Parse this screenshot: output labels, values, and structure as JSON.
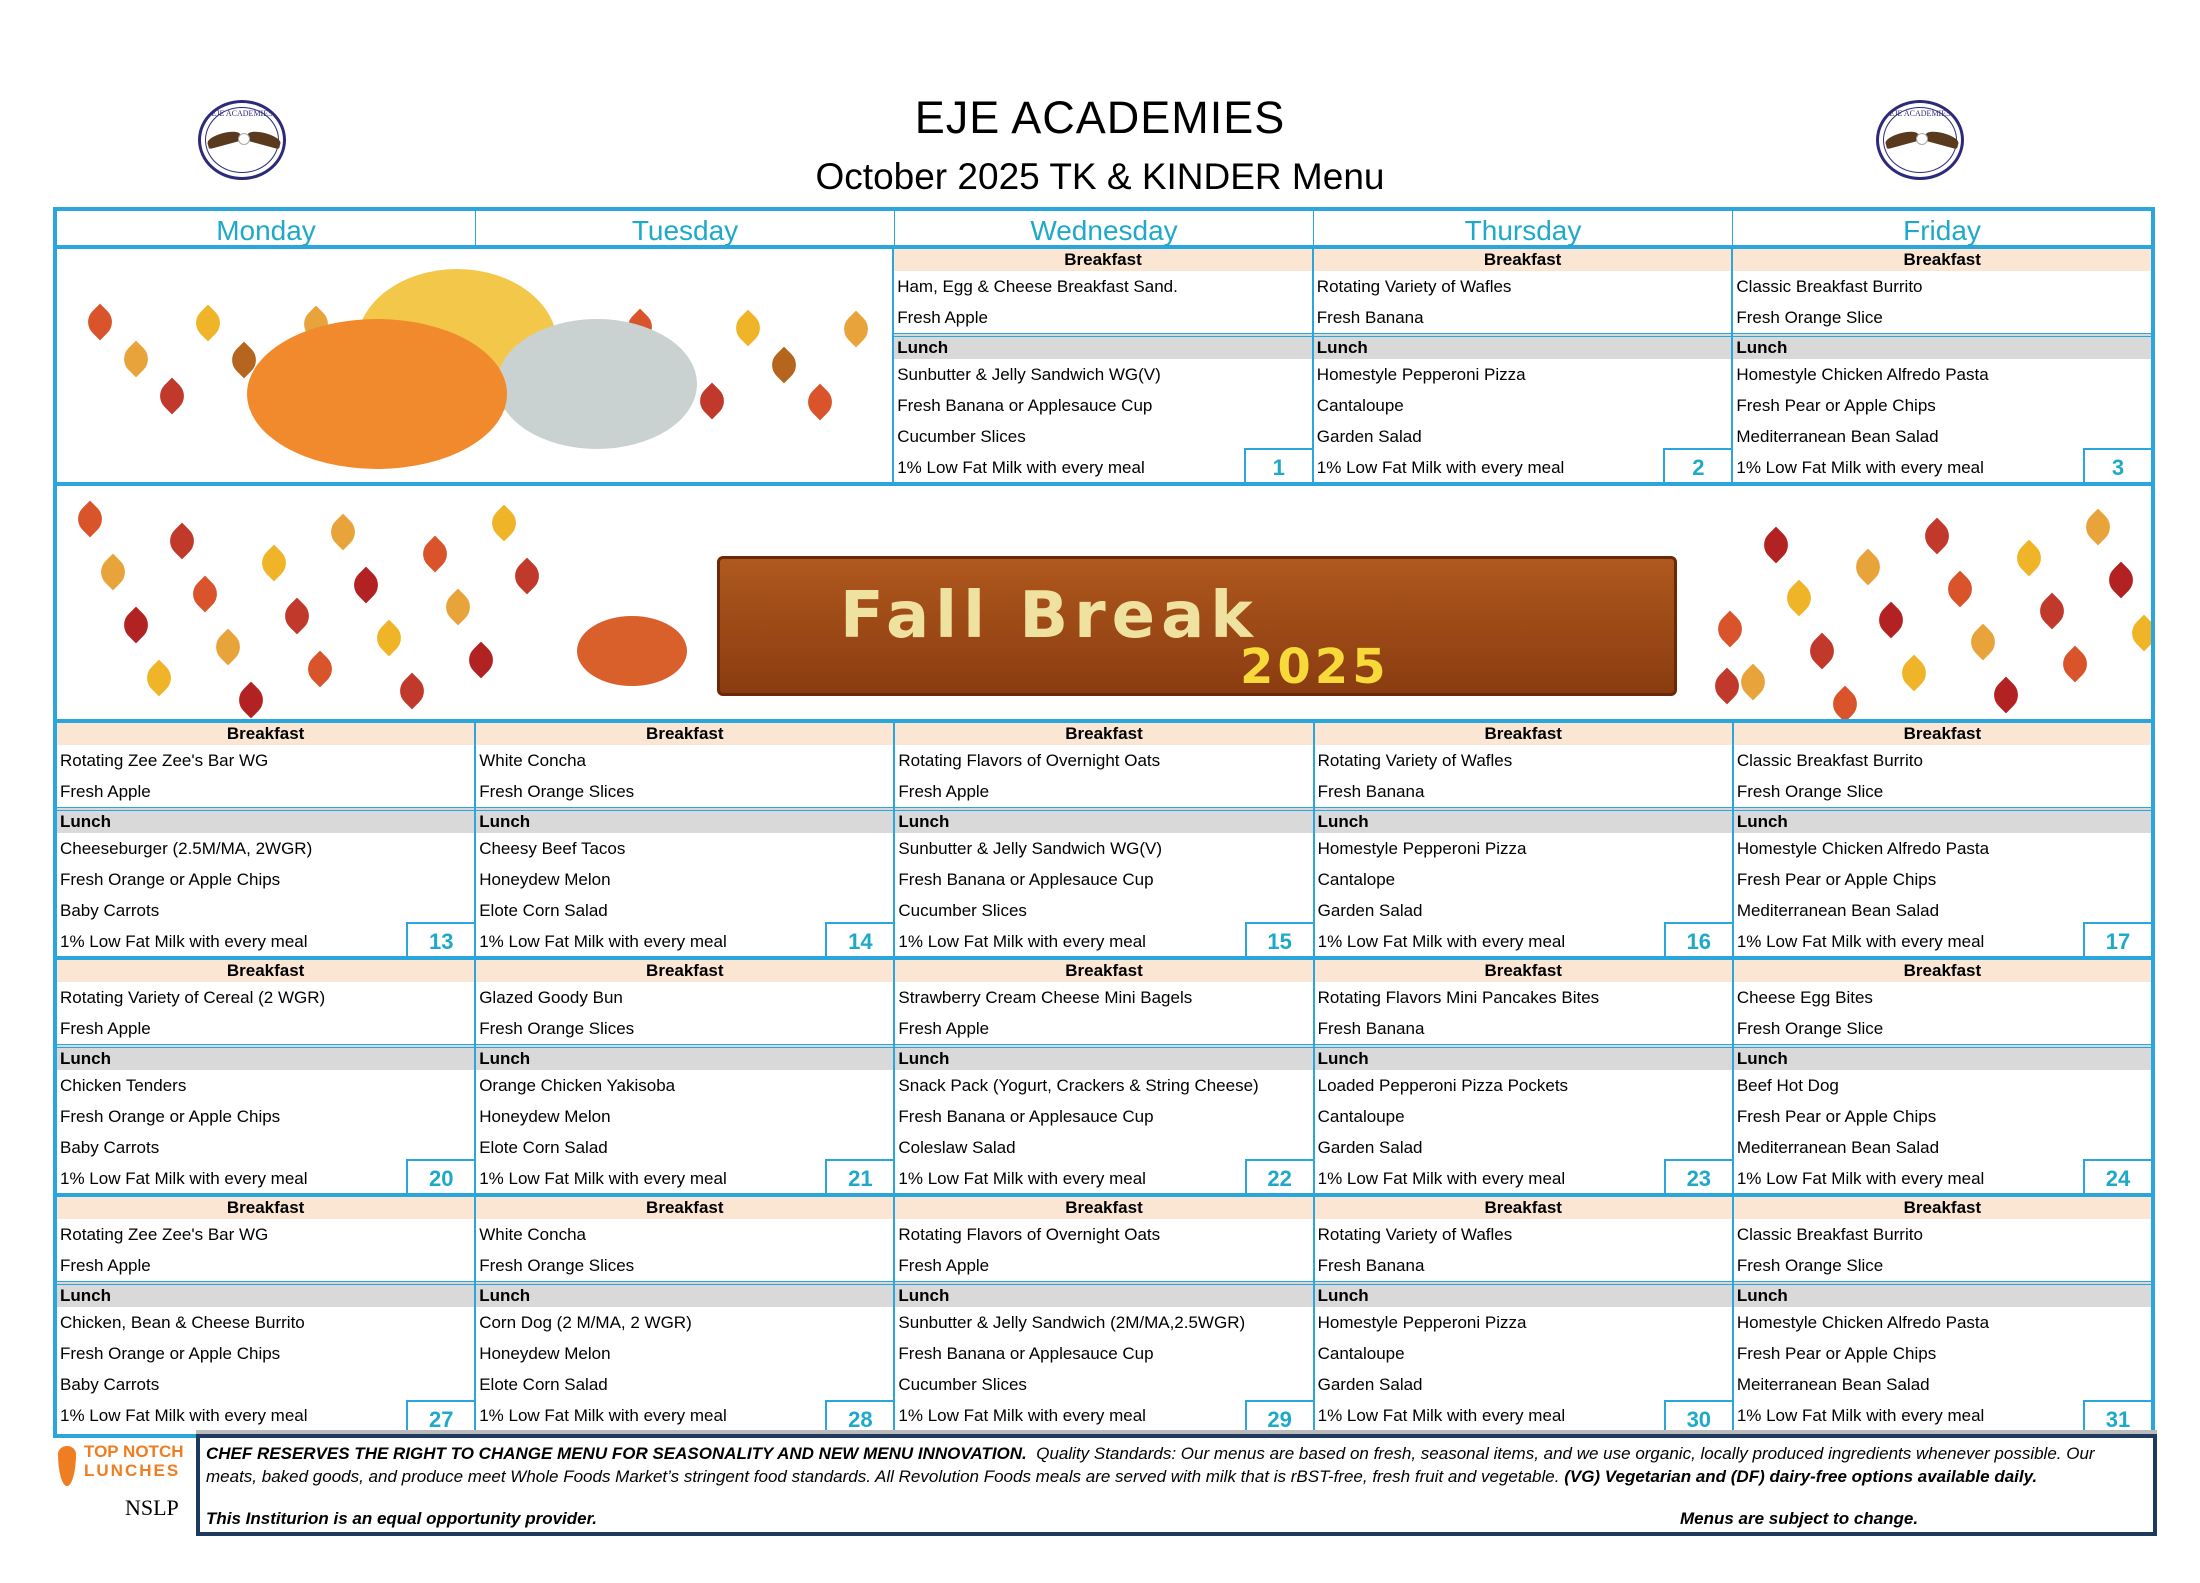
{
  "header": {
    "title": "EJE  ACADEMIES",
    "subtitle": "October 2025 TK & KINDER Menu",
    "logo_text": "EJE ACADEMIES"
  },
  "days": [
    "Monday",
    "Tuesday",
    "Wednesday",
    "Thursday",
    "Friday"
  ],
  "labels": {
    "breakfast": "Breakfast",
    "lunch": "Lunch"
  },
  "fall_break": {
    "line1": "Fall Break",
    "line2": "2025"
  },
  "colors": {
    "accent": "#2ba6dc",
    "day_header": "#1fa9c9",
    "breakfast_bg": "#fbe6d4",
    "lunch_bg": "#d9d9d9"
  },
  "weeks": [
    {
      "days": [
        null,
        null,
        {
          "date": "1",
          "breakfast": [
            "Ham, Egg & Cheese Breakfast Sand.",
            "Fresh Apple"
          ],
          "lunch": [
            "Sunbutter & Jelly Sandwich WG(V)",
            "Fresh Banana or Applesauce Cup",
            "Cucumber Slices",
            "1% Low Fat Milk with every meal"
          ]
        },
        {
          "date": "2",
          "breakfast": [
            "Rotating Variety of Wafles",
            "Fresh Banana"
          ],
          "lunch": [
            "Homestyle Pepperoni Pizza",
            "Cantaloupe",
            "Garden Salad",
            "1% Low Fat Milk with every meal"
          ]
        },
        {
          "date": "3",
          "breakfast": [
            "Classic Breakfast Burrito",
            "Fresh Orange Slice"
          ],
          "lunch": [
            "Homestyle Chicken Alfredo Pasta",
            "Fresh Pear or Apple Chips",
            "Mediterranean Bean Salad",
            "1% Low Fat Milk with every meal"
          ]
        }
      ]
    },
    {
      "days": [
        {
          "date": "13",
          "breakfast": [
            "Rotating Zee Zee's Bar WG",
            "Fresh Apple"
          ],
          "lunch": [
            "Cheeseburger (2.5M/MA, 2WGR)",
            "Fresh Orange or Apple Chips",
            "Baby Carrots",
            "1% Low Fat Milk with every meal"
          ]
        },
        {
          "date": "14",
          "breakfast": [
            "White Concha",
            "Fresh Orange Slices"
          ],
          "lunch": [
            "Cheesy Beef Tacos",
            "Honeydew Melon",
            "Elote Corn Salad",
            "1% Low Fat Milk with every meal"
          ]
        },
        {
          "date": "15",
          "breakfast": [
            "Rotating Flavors of Overnight Oats",
            "Fresh Apple"
          ],
          "lunch": [
            "Sunbutter & Jelly Sandwich WG(V)",
            "Fresh Banana or Applesauce Cup",
            "Cucumber Slices",
            "1% Low Fat Milk with every meal"
          ]
        },
        {
          "date": "16",
          "breakfast": [
            "Rotating Variety of Wafles",
            "Fresh Banana"
          ],
          "lunch": [
            "Homestyle Pepperoni Pizza",
            "Cantalope",
            "Garden Salad",
            "1% Low Fat Milk with every meal"
          ]
        },
        {
          "date": "17",
          "breakfast": [
            "Classic Breakfast Burrito",
            "Fresh Orange Slice"
          ],
          "lunch": [
            "Homestyle Chicken Alfredo Pasta",
            "Fresh Pear or Apple Chips",
            "Mediterranean Bean Salad",
            "1% Low Fat Milk with every meal"
          ]
        }
      ]
    },
    {
      "days": [
        {
          "date": "20",
          "breakfast": [
            "Rotating Variety of Cereal (2 WGR)",
            "Fresh Apple"
          ],
          "lunch": [
            "Chicken Tenders",
            "Fresh Orange or Apple Chips",
            "Baby Carrots",
            "1% Low Fat Milk with every meal"
          ]
        },
        {
          "date": "21",
          "breakfast": [
            "Glazed Goody Bun",
            "Fresh Orange Slices"
          ],
          "lunch": [
            "Orange Chicken Yakisoba",
            "Honeydew Melon",
            "Elote Corn Salad",
            "1% Low Fat Milk with every meal"
          ]
        },
        {
          "date": "22",
          "breakfast": [
            "Strawberry Cream Cheese Mini Bagels",
            "Fresh Apple"
          ],
          "lunch": [
            "Snack Pack (Yogurt, Crackers & String Cheese)",
            "Fresh Banana or Applesauce Cup",
            "Coleslaw Salad",
            "1% Low Fat Milk with every meal"
          ]
        },
        {
          "date": "23",
          "breakfast": [
            "Rotating Flavors Mini Pancakes Bites",
            "Fresh Banana"
          ],
          "lunch": [
            "Loaded Pepperoni Pizza Pockets",
            "Cantaloupe",
            "Garden Salad",
            "1% Low Fat Milk with every meal"
          ]
        },
        {
          "date": "24",
          "breakfast": [
            "Cheese Egg Bites",
            "Fresh Orange Slice"
          ],
          "lunch": [
            "Beef Hot Dog",
            "Fresh Pear or Apple Chips",
            "Mediterranean Bean Salad",
            "1% Low Fat Milk with every meal"
          ]
        }
      ]
    },
    {
      "days": [
        {
          "date": "27",
          "breakfast": [
            "Rotating Zee Zee's Bar WG",
            "Fresh Apple"
          ],
          "lunch": [
            "Chicken, Bean & Cheese Burrito",
            "Fresh Orange or Apple Chips",
            "Baby Carrots",
            "1% Low Fat Milk with every meal"
          ]
        },
        {
          "date": "28",
          "breakfast": [
            "White Concha",
            "Fresh Orange Slices"
          ],
          "lunch": [
            "Corn Dog (2 M/MA, 2 WGR)",
            "Honeydew Melon",
            "Elote Corn Salad",
            "1% Low Fat Milk with every meal"
          ]
        },
        {
          "date": "29",
          "breakfast": [
            "Rotating Flavors of Overnight Oats",
            "Fresh Apple"
          ],
          "lunch": [
            "Sunbutter & Jelly Sandwich (2M/MA,2.5WGR)",
            "Fresh Banana or Applesauce Cup",
            "Cucumber Slices",
            "1% Low Fat Milk with every meal"
          ]
        },
        {
          "date": "30",
          "breakfast": [
            "Rotating Variety of Wafles",
            "Fresh Banana"
          ],
          "lunch": [
            "Homestyle Pepperoni Pizza",
            "Cantaloupe",
            "Garden Salad",
            "1% Low Fat Milk with every meal"
          ]
        },
        {
          "date": "31",
          "breakfast": [
            "Classic Breakfast Burrito",
            "Fresh Orange Slice"
          ],
          "lunch": [
            "Homestyle Chicken Alfredo Pasta",
            "Fresh Pear or Apple Chips",
            "Meiterranean Bean Salad",
            "1% Low Fat Milk with every meal"
          ]
        }
      ]
    }
  ],
  "footer": {
    "logo_line1": "TOP NOTCH",
    "logo_line2": "LUNCHES",
    "nslp": "NSLP",
    "bold_notice": "CHEF RESERVES THE RIGHT TO CHANGE MENU FOR SEASONALITY AND NEW MENU INNOVATION.",
    "body": "Quality Standards: Our menus are based on fresh, seasonal items, and we use organic, locally produced ingredients whenever possible. Our meats, baked goods, and produce meet Whole Foods Market’s stringent food standards. All Revolution Foods meals are served with milk that is rBST-free, fresh fruit and vegetable.",
    "bold_tail": "(VG) Vegetarian and (DF) dairy-free options available daily.",
    "equal_opportunity": "This Institurion is an equal opportunity provider.",
    "subject_to_change": "Menus are subject to change."
  }
}
